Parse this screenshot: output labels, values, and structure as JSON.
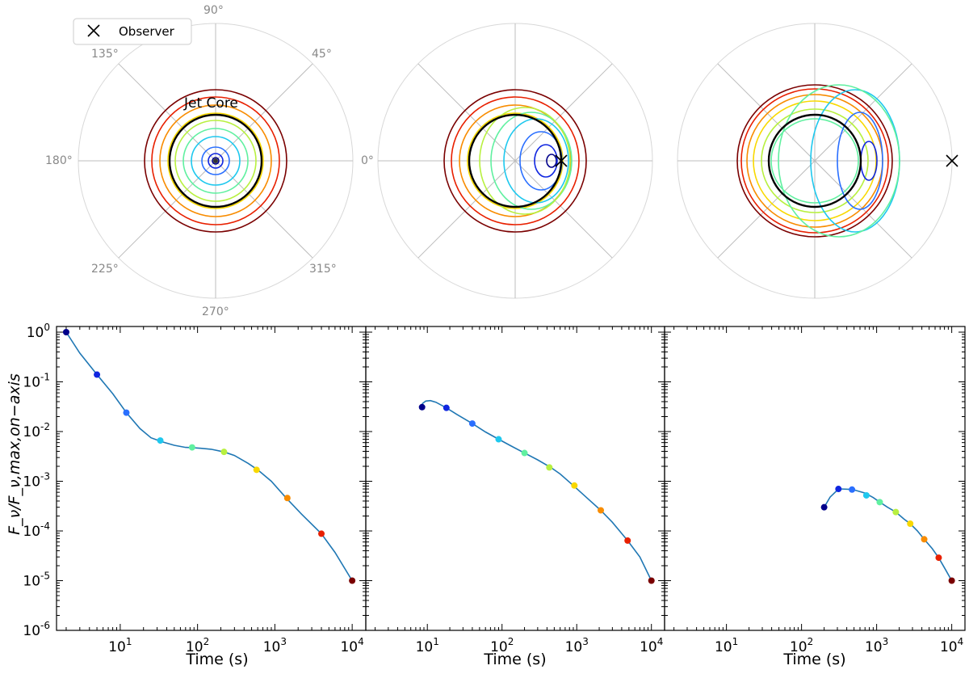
{
  "legend": {
    "label": "Observer",
    "marker": "x-marker-icon"
  },
  "polar": {
    "angle_labels": [
      "0°",
      "45°",
      "90°",
      "135°",
      "180°",
      "225°",
      "270°",
      "315°"
    ],
    "annotation": "Jet Core",
    "colors": [
      "#00008b",
      "#1026e0",
      "#2a6fff",
      "#1ec8ee",
      "#60f0a0",
      "#b8f040",
      "#f8d800",
      "#f88c00",
      "#e82000",
      "#7a0000"
    ]
  },
  "chart_data": [
    {
      "type": "line",
      "panel": "bottom-left",
      "xlabel": "Time (s)",
      "ylabel": "F_ν/F_ν,max,on−axis",
      "xscale": "log",
      "yscale": "log",
      "xlim": [
        1.5,
        15000
      ],
      "ylim": [
        1e-06,
        1.3
      ],
      "x_ticks": [
        "10^1",
        "10^2",
        "10^3",
        "10^4"
      ],
      "y_ticks": [
        "10^0",
        "10^-1",
        "10^-2",
        "10^-3",
        "10^-4",
        "10^-5",
        "10^-6"
      ],
      "curve_color": "#1f77b4",
      "curve": {
        "x": [
          2,
          3,
          5,
          8,
          12,
          18,
          25,
          35,
          50,
          70,
          85,
          110,
          150,
          220,
          300,
          450,
          600,
          900,
          1400,
          2200,
          4000,
          6000,
          10000
        ],
        "y": [
          1.0,
          0.38,
          0.14,
          0.058,
          0.024,
          0.0115,
          0.0075,
          0.0062,
          0.0053,
          0.0048,
          0.00475,
          0.0046,
          0.0044,
          0.0039,
          0.0033,
          0.0023,
          0.0017,
          0.001,
          0.00046,
          0.00022,
          8.8e-05,
          3.7e-05,
          1e-05
        ]
      },
      "points": {
        "x": [
          2,
          5,
          12,
          33,
          85,
          220,
          580,
          1450,
          4000,
          10000
        ],
        "y": [
          1.0,
          0.14,
          0.024,
          0.0066,
          0.0048,
          0.0039,
          0.0017,
          0.00046,
          8.8e-05,
          1e-05
        ]
      }
    },
    {
      "type": "line",
      "panel": "bottom-middle",
      "xlabel": "Time (s)",
      "xscale": "log",
      "yscale": "log",
      "xlim": [
        1.5,
        15000
      ],
      "ylim": [
        1e-06,
        1.3
      ],
      "x_ticks": [
        "10^1",
        "10^2",
        "10^3",
        "10^4"
      ],
      "curve_color": "#1f77b4",
      "curve": {
        "x": [
          8.5,
          9.5,
          11,
          13,
          18,
          25,
          40,
          60,
          90,
          130,
          200,
          300,
          450,
          600,
          900,
          1400,
          2100,
          3000,
          4800,
          7000,
          10000
        ],
        "y": [
          0.036,
          0.041,
          0.042,
          0.039,
          0.03,
          0.022,
          0.0145,
          0.0098,
          0.007,
          0.0052,
          0.0037,
          0.0027,
          0.0019,
          0.0014,
          0.00082,
          0.00045,
          0.00026,
          0.00015,
          6.4e-05,
          3e-05,
          1e-05
        ]
      },
      "points": {
        "x": [
          8.5,
          18,
          40,
          90,
          200,
          430,
          930,
          2100,
          4800,
          10000
        ],
        "y": [
          0.031,
          0.03,
          0.0145,
          0.007,
          0.0037,
          0.0019,
          0.00082,
          0.00026,
          6.4e-05,
          1e-05
        ]
      }
    },
    {
      "type": "line",
      "panel": "bottom-right",
      "xlabel": "Time (s)",
      "xscale": "log",
      "yscale": "log",
      "xlim": [
        1.5,
        15000
      ],
      "ylim": [
        1e-06,
        1.3
      ],
      "x_ticks": [
        "10^1",
        "10^2",
        "10^3",
        "10^4"
      ],
      "curve_color": "#1f77b4",
      "curve": {
        "x": [
          200,
          240,
          290,
          330,
          420,
          520,
          700,
          900,
          1100,
          1400,
          1800,
          2300,
          2800,
          3500,
          4300,
          5500,
          6700,
          8200,
          10000
        ],
        "y": [
          0.0003,
          0.00048,
          0.00063,
          0.0007,
          0.00069,
          0.00066,
          0.00058,
          0.00047,
          0.00038,
          0.0003,
          0.00024,
          0.000175,
          0.00014,
          0.0001,
          6.8e-05,
          4.4e-05,
          2.9e-05,
          1.7e-05,
          1e-05
        ]
      },
      "points": {
        "x": [
          200,
          310,
          470,
          730,
          1100,
          1800,
          2800,
          4300,
          6700,
          10000
        ],
        "y": [
          0.0003,
          0.0007,
          0.00068,
          0.00052,
          0.00038,
          0.00024,
          0.00014,
          6.8e-05,
          2.9e-05,
          1e-05
        ]
      }
    }
  ]
}
